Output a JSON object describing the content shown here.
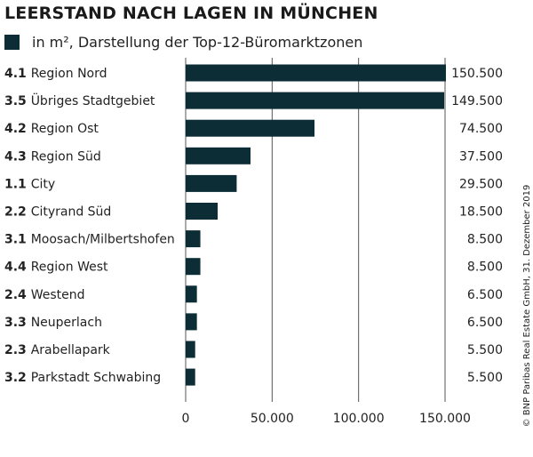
{
  "chart_data": {
    "type": "bar",
    "orientation": "horizontal",
    "title": "LEERSTAND NACH LAGEN IN MÜNCHEN",
    "legend": "in m², Darstellung der Top-12-Büromarktzonen",
    "codes": [
      "4.1",
      "3.5",
      "4.2",
      "4.3",
      "1.1",
      "2.2",
      "3.1",
      "4.4",
      "2.4",
      "3.3",
      "2.3",
      "3.2"
    ],
    "categories": [
      "Region Nord",
      "Übriges Stadtgebiet",
      "Region Ost",
      "Region Süd",
      "City",
      "Cityrand Süd",
      "Moosach/Milbertshofen",
      "Region West",
      "Westend",
      "Neuperlach",
      "Arabellapark",
      "Parkstadt Schwabing"
    ],
    "values": [
      150500,
      149500,
      74500,
      37500,
      29500,
      18500,
      8500,
      8500,
      6500,
      6500,
      5500,
      5500
    ],
    "value_labels": [
      "150.500",
      "149.500",
      "74.500",
      "37.500",
      "29.500",
      "18.500",
      "8.500",
      "8.500",
      "6.500",
      "6.500",
      "5.500",
      "5.500"
    ],
    "xlim": [
      0,
      150000
    ],
    "xticks": [
      0,
      50000,
      100000,
      150000
    ],
    "xtick_labels": [
      "0",
      "50.000",
      "100.000",
      "150.000"
    ],
    "grid": true,
    "bar_color": "#0d2d36",
    "source": "© BNP Paribas Real Estate GmbH, 31. Dezember 2019"
  }
}
